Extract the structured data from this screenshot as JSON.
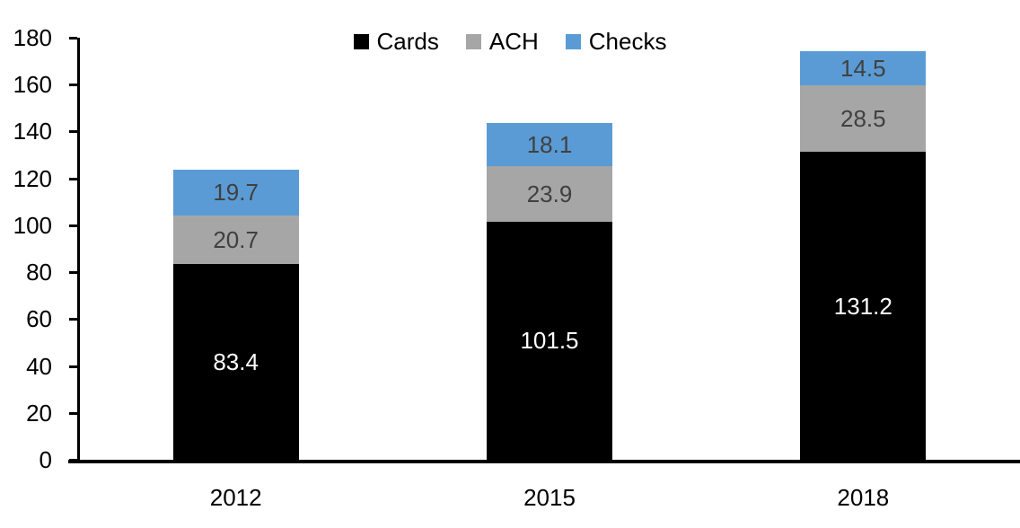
{
  "chart_data": {
    "type": "bar",
    "stacked": true,
    "title": "",
    "xlabel": "",
    "ylabel": "",
    "categories": [
      "2012",
      "2015",
      "2018"
    ],
    "series": [
      {
        "name": "Cards",
        "color": "#000000",
        "label_color": "#ffffff",
        "values": [
          83.4,
          101.5,
          131.2
        ]
      },
      {
        "name": "ACH",
        "color": "#A6A6A6",
        "label_color": "#404040",
        "values": [
          20.7,
          23.9,
          28.5
        ]
      },
      {
        "name": "Checks",
        "color": "#5B9BD5",
        "label_color": "#404040",
        "values": [
          19.7,
          18.1,
          14.5
        ]
      }
    ],
    "totals": [
      123.8,
      143.5,
      174.2
    ],
    "ylim": [
      0,
      180
    ],
    "yticks": [
      0,
      20,
      40,
      60,
      80,
      100,
      120,
      140,
      160,
      180
    ],
    "grid": false,
    "legend_position": "top-center",
    "axis_color": "#000000",
    "tick_label_color": "#000000"
  }
}
